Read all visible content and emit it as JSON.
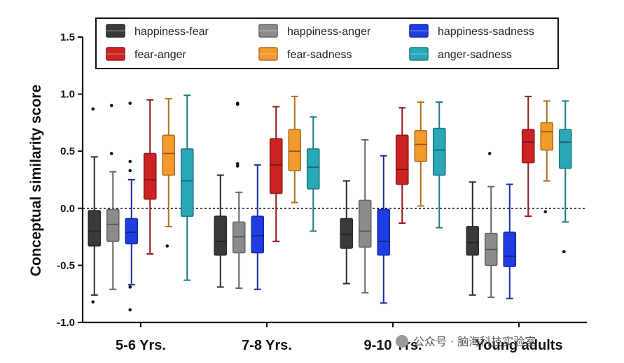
{
  "chart_data": {
    "type": "box",
    "title": "",
    "xlabel": "",
    "ylabel": "Conceptual similarity score",
    "ylim": [
      -1.0,
      1.5
    ],
    "yticks": [
      "1.5",
      "1.0",
      "0.5",
      "0.0",
      "-0.5",
      "-1.0"
    ],
    "ytick_values": [
      1.5,
      1.0,
      0.5,
      0.0,
      -0.5,
      -1.0
    ],
    "reference_line": 0.0,
    "legend_position": "top",
    "categories": [
      "5-6 Yrs.",
      "7-8 Yrs.",
      "9-10 Yrs.",
      "Young adults"
    ],
    "series": [
      {
        "name": "happiness-fear",
        "color": "#3a3a3a",
        "boxes": [
          {
            "whislo": -0.76,
            "q1": -0.33,
            "med": -0.2,
            "q3": -0.02,
            "whishi": 0.45,
            "fliers": [
              0.87,
              -0.82
            ]
          },
          {
            "whislo": -0.69,
            "q1": -0.41,
            "med": -0.29,
            "q3": -0.07,
            "whishi": 0.29,
            "fliers": []
          },
          {
            "whislo": -0.66,
            "q1": -0.35,
            "med": -0.23,
            "q3": -0.09,
            "whishi": 0.24,
            "fliers": []
          },
          {
            "whislo": -0.76,
            "q1": -0.41,
            "med": -0.3,
            "q3": -0.16,
            "whishi": 0.23,
            "fliers": []
          }
        ]
      },
      {
        "name": "happiness-anger",
        "color": "#8c8c8c",
        "boxes": [
          {
            "whislo": -0.71,
            "q1": -0.29,
            "med": -0.14,
            "q3": -0.01,
            "whishi": 0.32,
            "fliers": [
              0.9,
              0.48
            ]
          },
          {
            "whislo": -0.7,
            "q1": -0.39,
            "med": -0.25,
            "q3": -0.12,
            "whishi": 0.14,
            "fliers": [
              0.92,
              0.91,
              0.39,
              0.37
            ]
          },
          {
            "whislo": -0.74,
            "q1": -0.34,
            "med": -0.2,
            "q3": 0.07,
            "whishi": 0.6,
            "fliers": []
          },
          {
            "whislo": -0.78,
            "q1": -0.5,
            "med": -0.36,
            "q3": -0.22,
            "whishi": 0.19,
            "fliers": [
              0.48
            ]
          }
        ]
      },
      {
        "name": "happiness-sadness",
        "color": "#1f3de0",
        "boxes": [
          {
            "whislo": -0.67,
            "q1": -0.31,
            "med": -0.21,
            "q3": -0.09,
            "whishi": 0.25,
            "fliers": [
              0.92,
              0.41,
              0.33,
              -0.69,
              -0.89
            ]
          },
          {
            "whislo": -0.71,
            "q1": -0.39,
            "med": -0.24,
            "q3": -0.07,
            "whishi": 0.38,
            "fliers": []
          },
          {
            "whislo": -0.83,
            "q1": -0.41,
            "med": -0.29,
            "q3": -0.01,
            "whishi": 0.46,
            "fliers": []
          },
          {
            "whislo": -0.79,
            "q1": -0.51,
            "med": -0.42,
            "q3": -0.21,
            "whishi": 0.21,
            "fliers": []
          }
        ]
      },
      {
        "name": "fear-anger",
        "color": "#cc2222",
        "boxes": [
          {
            "whislo": -0.4,
            "q1": 0.08,
            "med": 0.25,
            "q3": 0.48,
            "whishi": 0.95,
            "fliers": []
          },
          {
            "whislo": -0.29,
            "q1": 0.13,
            "med": 0.38,
            "q3": 0.61,
            "whishi": 0.89,
            "fliers": []
          },
          {
            "whislo": -0.13,
            "q1": 0.21,
            "med": 0.34,
            "q3": 0.64,
            "whishi": 0.88,
            "fliers": []
          },
          {
            "whislo": -0.07,
            "q1": 0.4,
            "med": 0.58,
            "q3": 0.69,
            "whishi": 0.98,
            "fliers": []
          }
        ]
      },
      {
        "name": "fear-sadness",
        "color": "#f39a2c",
        "boxes": [
          {
            "whislo": -0.16,
            "q1": 0.29,
            "med": 0.48,
            "q3": 0.64,
            "whishi": 0.96,
            "fliers": [
              -0.33
            ]
          },
          {
            "whislo": 0.05,
            "q1": 0.33,
            "med": 0.5,
            "q3": 0.69,
            "whishi": 0.98,
            "fliers": []
          },
          {
            "whislo": 0.02,
            "q1": 0.41,
            "med": 0.56,
            "q3": 0.68,
            "whishi": 0.93,
            "fliers": []
          },
          {
            "whislo": 0.24,
            "q1": 0.51,
            "med": 0.67,
            "q3": 0.75,
            "whishi": 0.94,
            "fliers": [
              -0.03
            ]
          }
        ]
      },
      {
        "name": "anger-sadness",
        "color": "#2aa8b8",
        "boxes": [
          {
            "whislo": -0.63,
            "q1": -0.07,
            "med": 0.24,
            "q3": 0.52,
            "whishi": 0.99,
            "fliers": []
          },
          {
            "whislo": -0.2,
            "q1": 0.17,
            "med": 0.36,
            "q3": 0.52,
            "whishi": 0.8,
            "fliers": []
          },
          {
            "whislo": -0.17,
            "q1": 0.29,
            "med": 0.51,
            "q3": 0.7,
            "whishi": 0.93,
            "fliers": []
          },
          {
            "whislo": -0.12,
            "q1": 0.35,
            "med": 0.58,
            "q3": 0.69,
            "whishi": 0.94,
            "fliers": [
              -0.38
            ]
          }
        ]
      }
    ]
  },
  "watermark": {
    "text": "公众号 · 脑海科技实验室",
    "icon": "wechat-official-account-icon"
  }
}
